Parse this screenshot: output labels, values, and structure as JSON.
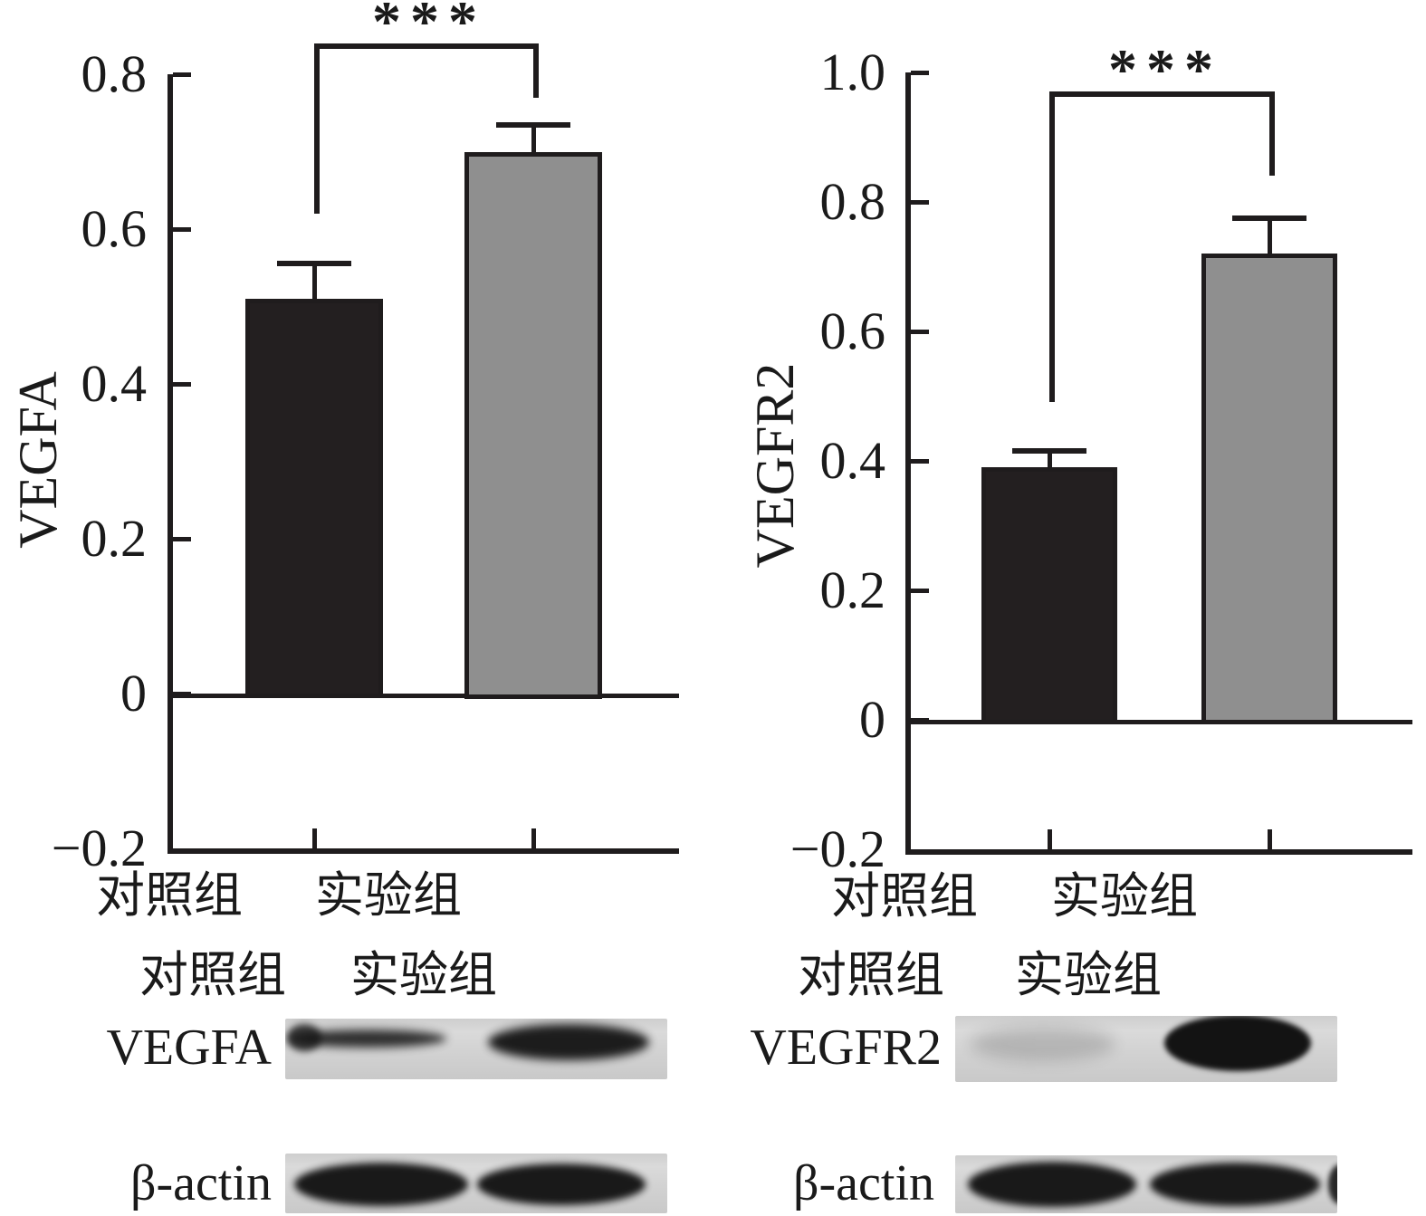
{
  "chart_data": [
    {
      "type": "bar",
      "title": "",
      "ylabel": "VEGFA",
      "xlabel": "",
      "categories": [
        "对照组",
        "实验组"
      ],
      "values": [
        0.51,
        0.7
      ],
      "errors": [
        0.045,
        0.035
      ],
      "bar_colors": [
        "#231f20",
        "#8f8f8f"
      ],
      "ylim": [
        -0.2,
        0.8
      ],
      "yticks": [
        {
          "v": -0.2,
          "label": "−0.2"
        },
        {
          "v": 0,
          "label": "0"
        },
        {
          "v": 0.2,
          "label": "0.2"
        },
        {
          "v": 0.4,
          "label": "0.4"
        },
        {
          "v": 0.6,
          "label": "0.6"
        },
        {
          "v": 0.8,
          "label": "0.8"
        }
      ],
      "grid": false,
      "legend": false,
      "significance": {
        "label": "***",
        "bar_y": 0.84,
        "left_end": 0.62,
        "right_end": 0.77
      }
    },
    {
      "type": "bar",
      "title": "",
      "ylabel": "VEGFR2",
      "xlabel": "",
      "categories": [
        "对照组",
        "实验组"
      ],
      "values": [
        0.39,
        0.72
      ],
      "errors": [
        0.025,
        0.055
      ],
      "bar_colors": [
        "#231f20",
        "#8f8f8f"
      ],
      "ylim": [
        -0.2,
        1.0
      ],
      "yticks": [
        {
          "v": -0.2,
          "label": "−0.2"
        },
        {
          "v": 0,
          "label": "0"
        },
        {
          "v": 0.2,
          "label": "0.2"
        },
        {
          "v": 0.4,
          "label": "0.4"
        },
        {
          "v": 0.6,
          "label": "0.6"
        },
        {
          "v": 0.8,
          "label": "0.8"
        },
        {
          "v": 1.0,
          "label": "1.0"
        }
      ],
      "grid": false,
      "legend": false,
      "significance": {
        "label": "***",
        "bar_y": 0.97,
        "left_end": 0.49,
        "right_end": 0.84
      }
    }
  ],
  "blots": [
    {
      "protein": "VEGFA",
      "lane_labels": [
        "对照组",
        "实验组"
      ],
      "rows": [
        {
          "label": "VEGFA",
          "band_intensities": [
            "weak",
            "strong"
          ]
        },
        {
          "label": "β-actin",
          "band_intensities": [
            "strong",
            "strong"
          ]
        }
      ]
    },
    {
      "protein": "VEGFR2",
      "lane_labels": [
        "对照组",
        "实验组"
      ],
      "rows": [
        {
          "label": "VEGFR2",
          "band_intensities": [
            "very-weak",
            "very-strong"
          ]
        },
        {
          "label": "β-actin",
          "band_intensities": [
            "strong",
            "strong"
          ]
        }
      ]
    }
  ]
}
